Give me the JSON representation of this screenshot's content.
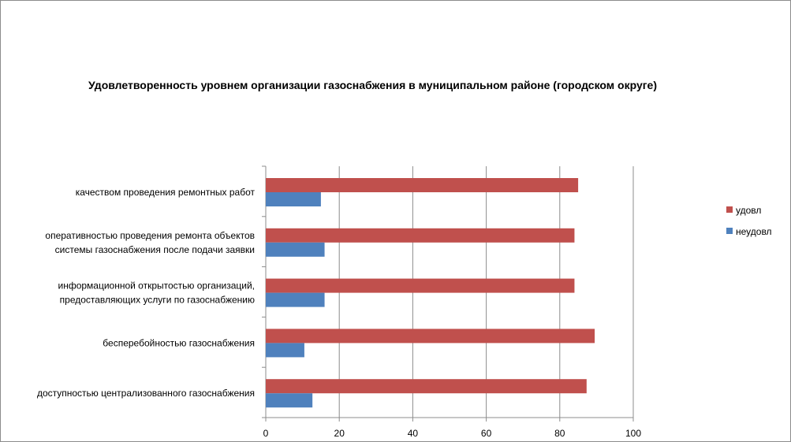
{
  "chart_data": {
    "type": "bar",
    "orientation": "horizontal",
    "title": "Удовлетворенность уровнем организации газоснабжения в муниципальном районе (городском округе)",
    "xlabel": "",
    "ylabel": "",
    "xlim": [
      0,
      100
    ],
    "ticks": [
      "0",
      "20",
      "40",
      "60",
      "80",
      "100"
    ],
    "grid": true,
    "legend_position": "right",
    "categories": [
      [
        "качеством  проведения  ремонтных  работ"
      ],
      [
        "оперативностью  проведения  ремонта  объектов",
        "системы  газоснабжения  после  подачи  заявки"
      ],
      [
        "информационной  открытостью  организаций,",
        "предоставляющих  услуги  по  газоснабжению"
      ],
      [
        "бесперебойностью  газоснабжения"
      ],
      [
        "доступностью  централизованного  газоснабжения"
      ]
    ],
    "series": [
      {
        "name": "удовл",
        "color": "#c0504d",
        "values": [
          85,
          84,
          84,
          89.5,
          87.3
        ]
      },
      {
        "name": "неудовл",
        "color": "#4f81bd",
        "values": [
          15,
          16,
          16,
          10.5,
          12.7
        ]
      }
    ]
  }
}
